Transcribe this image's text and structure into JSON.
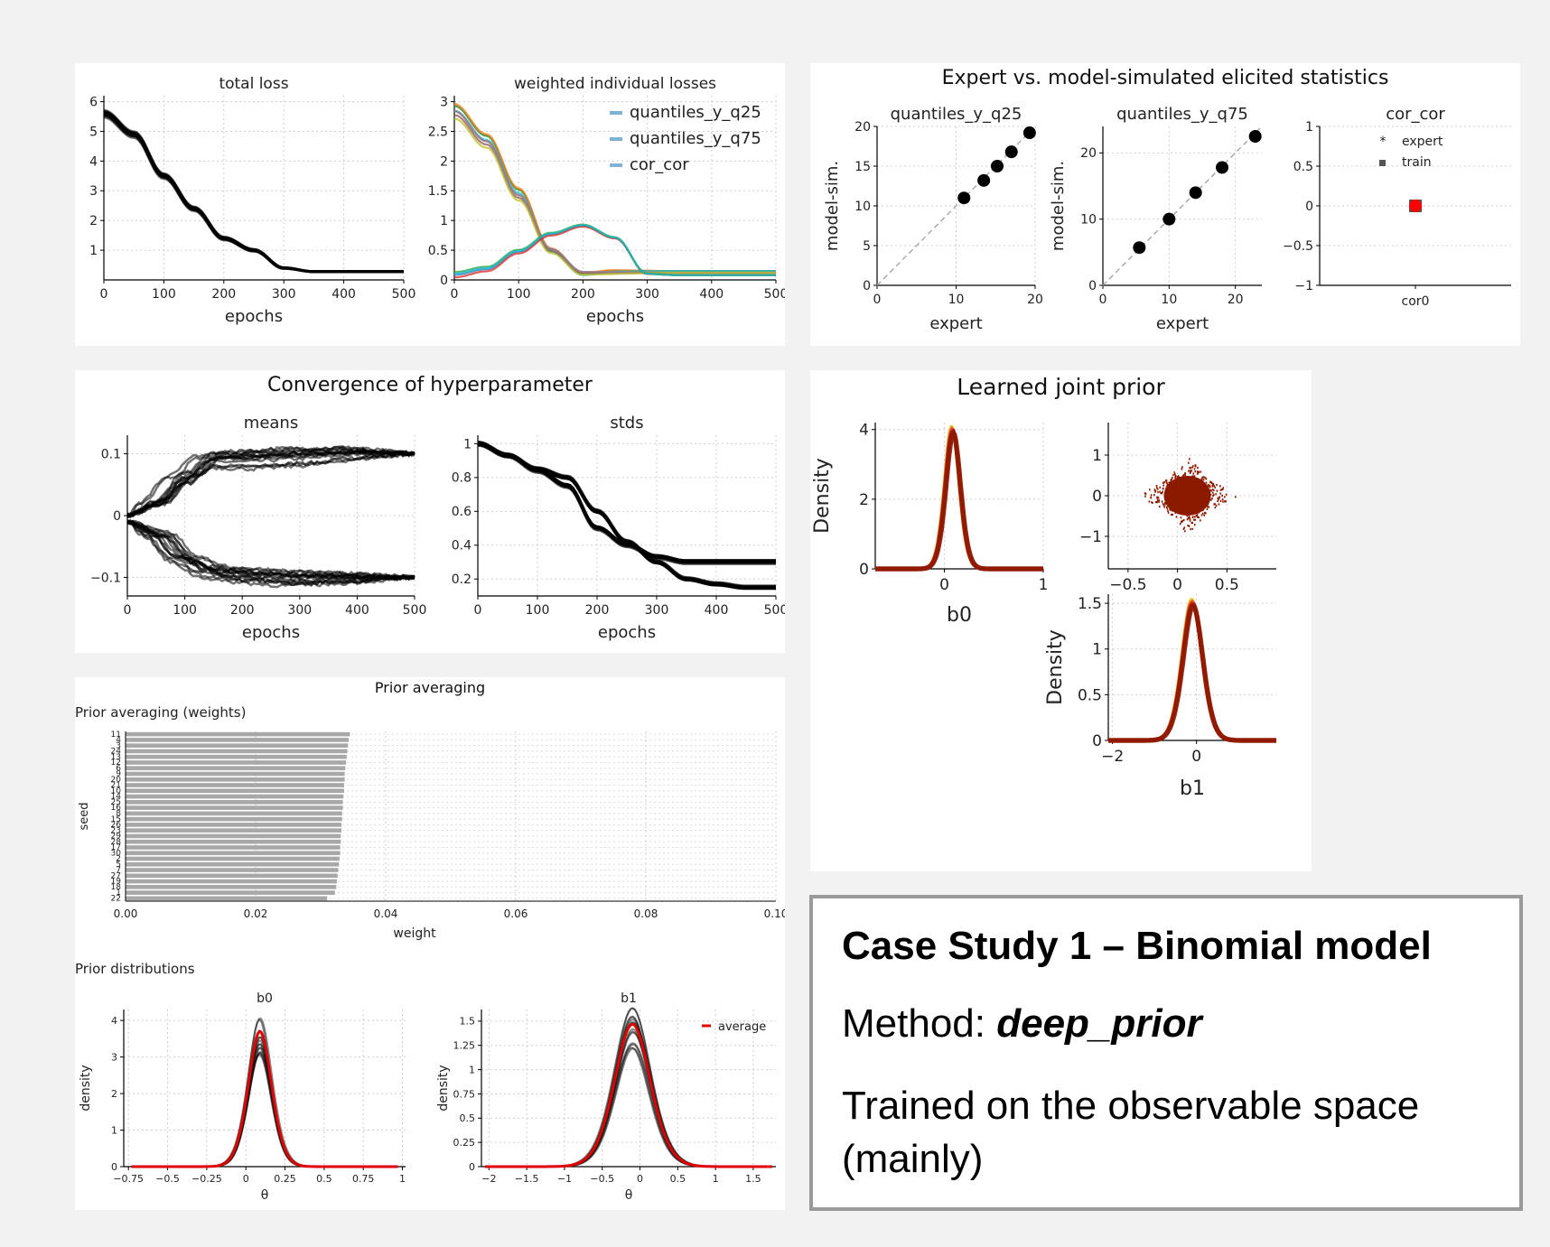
{
  "panels": {
    "loss": {
      "titles": [
        "total loss",
        "weighted individual losses"
      ],
      "xlabel": "epochs"
    },
    "expert": {
      "title": "Expert vs. model-simulated elicited statistics"
    },
    "hyper": {
      "title": "Convergence of hyperparameter",
      "xlabel": "epochs"
    },
    "prior": {
      "title": "Learned joint prior"
    },
    "averaging": {
      "title": "Prior averaging",
      "sub_weights": "Prior averaging (weights)",
      "sub_dist": "Prior distributions"
    }
  },
  "info": {
    "heading": "Case Study 1 – Binomial model",
    "method_label": "Method: ",
    "method_value": "deep_prior",
    "trained": "Trained on the observable space (mainly)"
  },
  "colors": {
    "black": "#000000",
    "red": "#d62728",
    "grey": "#555555",
    "dark_red": "#8b1a00",
    "dashed": "#aaaaaa"
  },
  "chart_data": [
    {
      "id": "total_loss",
      "type": "line",
      "title": "total loss",
      "xlabel": "epochs",
      "xlim": [
        0,
        500
      ],
      "ylim": [
        0,
        6.2
      ],
      "xticks": [
        0,
        100,
        200,
        300,
        400,
        500
      ],
      "yticks": [
        1,
        2,
        3,
        4,
        5,
        6
      ],
      "series": [
        {
          "x": [
            0,
            50,
            100,
            150,
            200,
            250,
            300,
            350,
            400,
            450,
            500
          ],
          "values": [
            5.6,
            4.9,
            3.5,
            2.4,
            1.4,
            1.0,
            0.4,
            0.28,
            0.28,
            0.28,
            0.28
          ]
        }
      ]
    },
    {
      "id": "weighted_losses",
      "type": "line",
      "title": "weighted individual losses",
      "xlabel": "epochs",
      "xlim": [
        0,
        500
      ],
      "ylim": [
        0,
        3.1
      ],
      "xticks": [
        0,
        100,
        200,
        300,
        400,
        500
      ],
      "yticks": [
        0.0,
        0.5,
        1.0,
        1.5,
        2.0,
        2.5,
        3.0
      ],
      "legend": "top-right",
      "series": [
        {
          "name": "quantiles_y_q25",
          "x": [
            0,
            50,
            100,
            150,
            200,
            250,
            300,
            350,
            400,
            450,
            500
          ],
          "values": [
            2.9,
            2.4,
            1.5,
            0.5,
            0.1,
            0.15,
            0.15,
            0.15,
            0.15,
            0.15,
            0.15
          ]
        },
        {
          "name": "quantiles_y_q75",
          "x": [
            0,
            50,
            100,
            150,
            200,
            250,
            300,
            350,
            400,
            450,
            500
          ],
          "values": [
            2.8,
            2.3,
            1.4,
            0.5,
            0.12,
            0.12,
            0.12,
            0.12,
            0.12,
            0.12,
            0.12
          ]
        },
        {
          "name": "cor_cor",
          "x": [
            0,
            50,
            100,
            150,
            200,
            250,
            300,
            350,
            400,
            450,
            500
          ],
          "values": [
            0.05,
            0.15,
            0.45,
            0.75,
            0.9,
            0.7,
            0.1,
            0.08,
            0.08,
            0.08,
            0.08
          ]
        }
      ]
    },
    {
      "id": "q25",
      "type": "scatter",
      "title": "quantiles_y_q25",
      "xlabel": "expert",
      "ylabel": "model-sim.",
      "xlim": [
        0,
        20
      ],
      "ylim": [
        0,
        20
      ],
      "xticks": [
        0,
        10,
        20
      ],
      "yticks": [
        0,
        5,
        10,
        15,
        20
      ],
      "points": [
        [
          11,
          11
        ],
        [
          13.5,
          13.2
        ],
        [
          15.2,
          15
        ],
        [
          17,
          16.8
        ],
        [
          19.3,
          19.2
        ]
      ]
    },
    {
      "id": "q75",
      "type": "scatter",
      "title": "quantiles_y_q75",
      "xlabel": "expert",
      "ylabel": "model-sim.",
      "xlim": [
        0,
        24
      ],
      "ylim": [
        0,
        24
      ],
      "xticks": [
        0,
        10,
        20
      ],
      "yticks": [
        0,
        10,
        20
      ],
      "points": [
        [
          5.5,
          5.7
        ],
        [
          10,
          10
        ],
        [
          14,
          14
        ],
        [
          18,
          17.8
        ],
        [
          23,
          22.5
        ]
      ]
    },
    {
      "id": "cor",
      "type": "scatter",
      "title": "cor_cor",
      "xtick": "cor0",
      "ylim": [
        -1,
        1
      ],
      "yticks": [
        -1.0,
        -0.5,
        0.0,
        0.5,
        1.0
      ],
      "legend_labels": [
        "expert",
        "train"
      ],
      "points": [
        [
          0,
          0
        ]
      ]
    },
    {
      "id": "means",
      "type": "line",
      "title": "means",
      "xlabel": "epochs",
      "xlim": [
        0,
        500
      ],
      "ylim": [
        -0.13,
        0.13
      ],
      "xticks": [
        0,
        100,
        200,
        300,
        400,
        500
      ],
      "yticks": [
        -0.1,
        0.0,
        0.1
      ],
      "series": [
        {
          "x": [
            0,
            50,
            100,
            150,
            200,
            300,
            400,
            500
          ],
          "values": [
            0.0,
            0.02,
            0.06,
            0.09,
            0.09,
            0.095,
            0.1,
            0.1
          ]
        },
        {
          "x": [
            0,
            50,
            100,
            150,
            200,
            300,
            400,
            500
          ],
          "values": [
            -0.01,
            -0.03,
            -0.07,
            -0.09,
            -0.095,
            -0.1,
            -0.1,
            -0.1
          ]
        }
      ]
    },
    {
      "id": "stds",
      "type": "line",
      "title": "stds",
      "xlabel": "epochs",
      "xlim": [
        0,
        500
      ],
      "ylim": [
        0.1,
        1.05
      ],
      "xticks": [
        0,
        100,
        200,
        300,
        400,
        500
      ],
      "yticks": [
        0.2,
        0.4,
        0.6,
        0.8,
        1.0
      ],
      "series": [
        {
          "x": [
            0,
            50,
            100,
            150,
            200,
            250,
            300,
            350,
            400,
            450,
            500
          ],
          "values": [
            1.0,
            0.93,
            0.84,
            0.75,
            0.5,
            0.4,
            0.33,
            0.3,
            0.3,
            0.3,
            0.3
          ]
        },
        {
          "x": [
            0,
            50,
            100,
            150,
            200,
            250,
            300,
            350,
            400,
            450,
            500
          ],
          "values": [
            1.0,
            0.93,
            0.85,
            0.8,
            0.6,
            0.42,
            0.3,
            0.2,
            0.17,
            0.15,
            0.15
          ]
        }
      ]
    },
    {
      "id": "b0_density",
      "type": "area",
      "xlabel": "b0",
      "ylabel": "Density",
      "xlim": [
        -0.7,
        1.0
      ],
      "ylim": [
        0,
        4.2
      ],
      "xticks": [
        0,
        1
      ],
      "yticks": [
        0,
        2,
        4
      ],
      "mode_x": 0.08,
      "peak": 4.1
    },
    {
      "id": "joint_scatter",
      "type": "scatter",
      "xlim": [
        -0.7,
        1.0
      ],
      "ylim": [
        -1.8,
        1.8
      ],
      "xticks": [
        -0.5,
        0.0,
        0.5
      ],
      "yticks": [
        -1,
        0,
        1
      ]
    },
    {
      "id": "b1_density",
      "type": "area",
      "xlabel": "b1",
      "ylabel": "Density",
      "xlim": [
        -2.1,
        1.9
      ],
      "ylim": [
        0,
        1.6
      ],
      "xticks": [
        -2,
        0
      ],
      "yticks": [
        0.0,
        0.5,
        1.0,
        1.5
      ],
      "mode_x": -0.1,
      "peak": 1.55
    },
    {
      "id": "weights",
      "type": "bar",
      "orientation": "horizontal",
      "xlabel": "weight",
      "ylabel": "seed",
      "xlim": [
        0,
        0.1
      ],
      "xticks": [
        0.0,
        0.02,
        0.04,
        0.06,
        0.08,
        0.1
      ],
      "categories": [
        "11",
        "4",
        "3",
        "24",
        "13",
        "12",
        "6",
        "9",
        "20",
        "21",
        "10",
        "14",
        "25",
        "16",
        "8",
        "15",
        "26",
        "23",
        "29",
        "28",
        "17",
        "30",
        "2",
        "5",
        "7",
        "27",
        "19",
        "18",
        "1",
        "22"
      ],
      "values": [
        0.0345,
        0.0343,
        0.0342,
        0.0341,
        0.034,
        0.0339,
        0.0338,
        0.0337,
        0.0337,
        0.0336,
        0.0336,
        0.0335,
        0.0334,
        0.0334,
        0.0333,
        0.0333,
        0.0332,
        0.0332,
        0.0331,
        0.0331,
        0.033,
        0.033,
        0.0329,
        0.0328,
        0.0327,
        0.0326,
        0.0325,
        0.0324,
        0.0322,
        0.031
      ]
    },
    {
      "id": "avg_b0",
      "type": "line",
      "title": "b0",
      "xlabel": "θ",
      "ylabel": "density",
      "xlim": [
        -0.78,
        1.02
      ],
      "ylim": [
        0,
        4.3
      ],
      "xticks": [
        -0.75,
        -0.5,
        -0.25,
        0.0,
        0.25,
        0.5,
        0.75,
        1.0
      ],
      "yticks": [
        0,
        1,
        2,
        3,
        4
      ],
      "mode_x": 0.09,
      "peak": 3.7
    },
    {
      "id": "avg_b1",
      "type": "line",
      "title": "b1",
      "xlabel": "θ",
      "ylabel": "density",
      "xlim": [
        -2.1,
        1.8
      ],
      "ylim": [
        0,
        1.62
      ],
      "xticks": [
        -2.0,
        -1.5,
        -1.0,
        -0.5,
        0.0,
        0.5,
        1.0,
        1.5
      ],
      "yticks": [
        0.0,
        0.25,
        0.5,
        0.75,
        1.0,
        1.25,
        1.5
      ],
      "legend": "average",
      "mode_x": -0.1,
      "peak": 1.47
    }
  ]
}
